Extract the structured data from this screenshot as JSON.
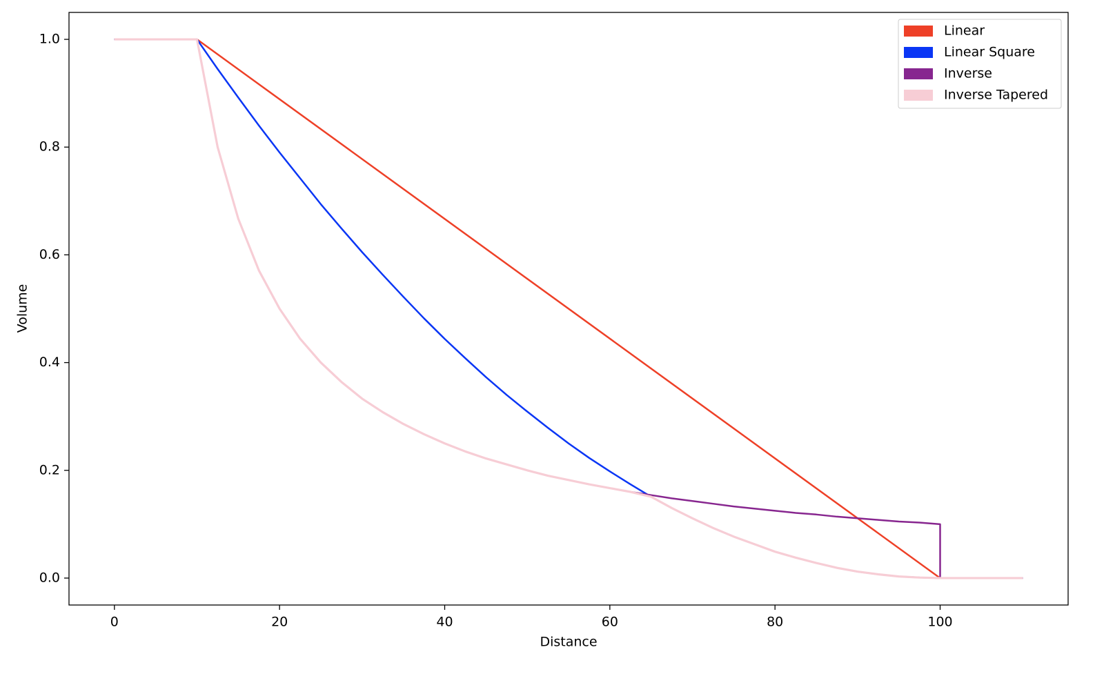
{
  "chart_data": {
    "type": "line",
    "xlabel": "Distance",
    "ylabel": "Volume",
    "xlim": [
      -5.5,
      115.5
    ],
    "xticks": [
      0,
      20,
      40,
      60,
      80,
      100
    ],
    "ylim": [
      -0.05,
      1.05
    ],
    "yticks": [
      {
        "value": 0,
        "label": "0.0"
      },
      0.2,
      0.4,
      0.6,
      0.8,
      {
        "value": 1,
        "label": "1.0"
      }
    ],
    "grid": false,
    "legend": "upper right",
    "series": [
      {
        "name": "Linear",
        "color": "#ee4027",
        "x": [
          0,
          10,
          100,
          110
        ],
        "values": [
          1,
          1,
          0,
          0
        ]
      },
      {
        "name": "Linear Square",
        "color": "#0a36f5",
        "x": [
          0,
          10,
          12.5,
          15,
          17.5,
          20,
          22.5,
          25,
          27.5,
          30,
          32.5,
          35,
          37.5,
          40,
          42.5,
          45,
          47.5,
          50,
          52.5,
          55,
          57.5,
          60,
          62.5,
          65,
          67.5,
          70,
          72.5,
          75,
          77.5,
          80,
          82.5,
          85,
          87.5,
          90,
          92.5,
          95,
          97.5,
          100,
          110
        ],
        "values": [
          1,
          1,
          0.945,
          0.892,
          0.84,
          0.79,
          0.742,
          0.694,
          0.649,
          0.605,
          0.563,
          0.522,
          0.482,
          0.444,
          0.408,
          0.373,
          0.34,
          0.309,
          0.279,
          0.25,
          0.223,
          0.198,
          0.174,
          0.151,
          0.13,
          0.111,
          0.093,
          0.077,
          0.063,
          0.049,
          0.038,
          0.028,
          0.019,
          0.012,
          0.007,
          0.003,
          0.001,
          0,
          0
        ]
      },
      {
        "name": "Inverse",
        "color": "#87268f",
        "x": [
          0,
          10,
          12.5,
          15,
          17.5,
          20,
          22.5,
          25,
          27.5,
          30,
          32.5,
          35,
          37.5,
          40,
          42.5,
          45,
          47.5,
          50,
          52.5,
          55,
          57.5,
          60,
          62.5,
          65,
          67.5,
          70,
          72.5,
          75,
          77.5,
          80,
          82.5,
          85,
          87.5,
          90,
          92.5,
          95,
          97.5,
          100,
          100,
          110
        ],
        "values": [
          1,
          1,
          0.8,
          0.667,
          0.571,
          0.5,
          0.444,
          0.4,
          0.364,
          0.333,
          0.308,
          0.286,
          0.267,
          0.25,
          0.235,
          0.222,
          0.211,
          0.2,
          0.19,
          0.182,
          0.174,
          0.167,
          0.16,
          0.154,
          0.148,
          0.143,
          0.138,
          0.133,
          0.129,
          0.125,
          0.121,
          0.118,
          0.114,
          0.111,
          0.108,
          0.105,
          0.103,
          0.1,
          0,
          0
        ]
      },
      {
        "name": "Inverse Tapered",
        "color": "#f7cdd5",
        "x": [
          0,
          10,
          12.5,
          15,
          17.5,
          20,
          22.5,
          25,
          27.5,
          30,
          32.5,
          35,
          37.5,
          40,
          42.5,
          45,
          47.5,
          50,
          52.5,
          55,
          57.5,
          60,
          62.5,
          65,
          67.5,
          70,
          72.5,
          75,
          77.5,
          80,
          82.5,
          85,
          87.5,
          90,
          92.5,
          95,
          97.5,
          100,
          110
        ],
        "values": [
          1,
          1,
          0.8,
          0.667,
          0.571,
          0.5,
          0.444,
          0.4,
          0.364,
          0.333,
          0.308,
          0.286,
          0.267,
          0.25,
          0.235,
          0.222,
          0.211,
          0.2,
          0.19,
          0.182,
          0.174,
          0.167,
          0.16,
          0.151,
          0.13,
          0.111,
          0.093,
          0.077,
          0.063,
          0.049,
          0.038,
          0.028,
          0.019,
          0.012,
          0.007,
          0.003,
          0.001,
          0,
          0
        ]
      }
    ]
  }
}
